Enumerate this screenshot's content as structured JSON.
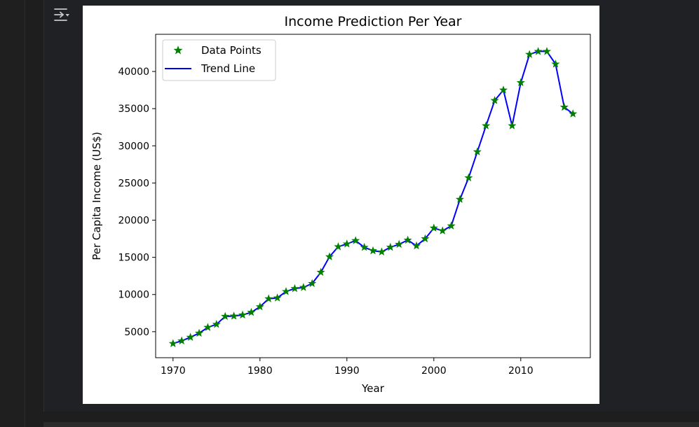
{
  "output_toggle_icon": "output-collapse-icon",
  "colors": {
    "page_bg": "#1e1e1e",
    "figure_bg": "#ffffff",
    "scatter": "#008000",
    "trend": "#0000ff"
  },
  "chart_data": {
    "type": "line",
    "title": "Income Prediction Per Year",
    "xlabel": "Year",
    "ylabel": "Per Capita Income (US$)",
    "xlim": [
      1968,
      2018
    ],
    "ylim": [
      1500,
      45000
    ],
    "xticks": [
      1970,
      1980,
      1990,
      2000,
      2010
    ],
    "yticks": [
      5000,
      10000,
      15000,
      20000,
      25000,
      30000,
      35000,
      40000
    ],
    "grid": false,
    "legend_position": "top-left",
    "series": [
      {
        "name": "Data Points",
        "kind": "scatter",
        "marker": "star",
        "color": "#008000"
      },
      {
        "name": "Trend Line",
        "kind": "line",
        "color": "#0000ff"
      }
    ],
    "x": [
      1970,
      1971,
      1972,
      1973,
      1974,
      1975,
      1976,
      1977,
      1978,
      1979,
      1980,
      1981,
      1982,
      1983,
      1984,
      1985,
      1986,
      1987,
      1988,
      1989,
      1990,
      1991,
      1992,
      1993,
      1994,
      1995,
      1996,
      1997,
      1998,
      1999,
      2000,
      2001,
      2002,
      2003,
      2004,
      2005,
      2006,
      2007,
      2008,
      2009,
      2010,
      2011,
      2012,
      2013,
      2014,
      2015,
      2016
    ],
    "y": [
      3400,
      3770,
      4250,
      4800,
      5580,
      5990,
      7060,
      7100,
      7250,
      7600,
      8350,
      9430,
      9540,
      10400,
      10800,
      10950,
      11480,
      12990,
      15080,
      16430,
      16800,
      17250,
      16350,
      15890,
      15730,
      16360,
      16750,
      17320,
      16550,
      17500,
      18940,
      18570,
      19230,
      22800,
      25700,
      29200,
      32700,
      36100,
      37500,
      32700,
      38500,
      42300,
      42700,
      42700,
      41000,
      35200,
      34300
    ]
  }
}
